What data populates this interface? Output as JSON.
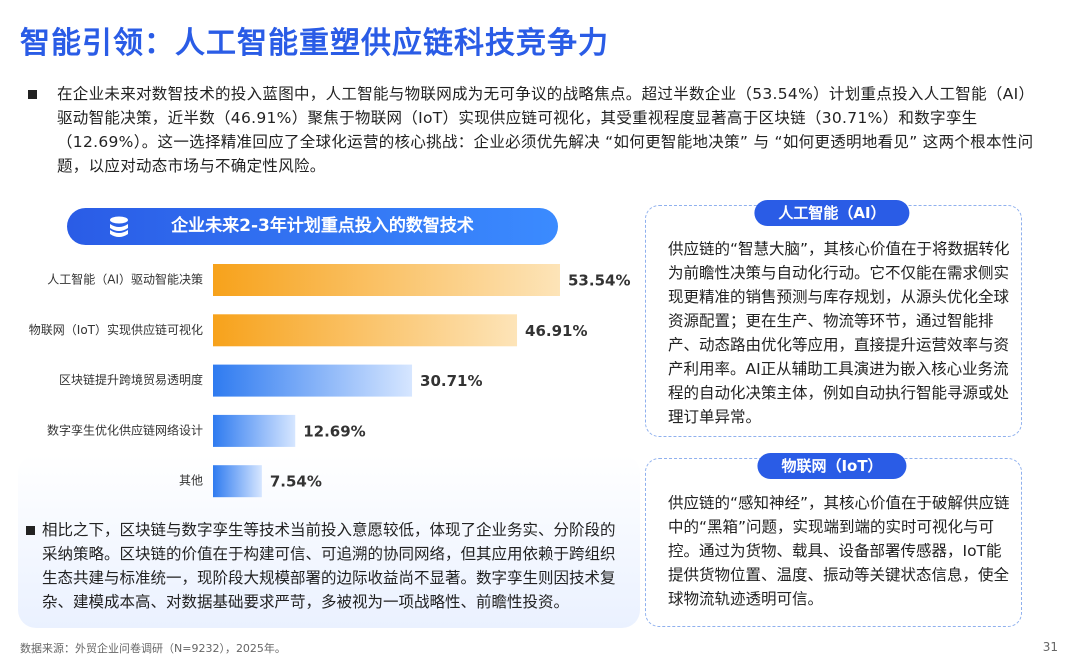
{
  "title": "智能引领：人工智能重塑供应链科技竞争力",
  "intro": "在企业未来对数智技术的投入蓝图中，人工智能与物联网成为无可争议的战略焦点。超过半数企业（53.54%）计划重点投入人工智能（AI）驱动智能决策，近半数（46.91%）聚焦于物联网（IoT）实现供应链可视化，其受重视程度显著高于区块链（30.71%）和数字孪生（12.69%）。这一选择精准回应了全球化运营的核心挑战：企业必须优先解决 “如何更智能地决策” 与 “如何更透明地看见” 这两个根本性问题，以应对动态市场与不确定性风险。",
  "chart_data": {
    "type": "hbar",
    "title": "企业未来2-3年计划重点投入的数智技术",
    "categories": [
      "人工智能（AI）驱动智能决策",
      "物联网（IoT）实现供应链可视化",
      "区块链提升跨境贸易透明度",
      "数字孪生优化供应链网络设计",
      "其他"
    ],
    "values": [
      53.54,
      46.91,
      30.71,
      12.69,
      7.54
    ],
    "value_labels": [
      "53.54%",
      "46.91%",
      "30.71%",
      "12.69%",
      "7.54%"
    ],
    "colors": [
      "#f7a21b",
      "#f7a21b",
      "#2f7bf0",
      "#2f7bf0",
      "#2f7bf0"
    ]
  },
  "note": "相比之下，区块链与数字孪生等技术当前投入意愿较低，体现了企业务实、分阶段的采纳策略。区块链的价值在于构建可信、可追溯的协同网络，但其应用依赖于跨组织生态共建与标准统一，现阶段大规模部署的边际收益尚不显著。数字孪生则因技术复杂、建模成本高、对数据基础要求严苛，多被视为一项战略性、前瞻性投资。",
  "cards": [
    {
      "title": "人工智能（AI）",
      "text": "供应链的“智慧大脑”，其核心价值在于将数据转化为前瞻性决策与自动化行动。它不仅能在需求侧实现更精准的销售预测与库存规划，从源头优化全球资源配置；更在生产、物流等环节，通过智能排产、动态路由优化等应用，直接提升运营效率与资产利用率。AI正从辅助工具演进为嵌入核心业务流程的自动化决策主体，例如自动执行智能寻源或处理订单异常。"
    },
    {
      "title": "物联网（IoT）",
      "text": "供应链的“感知神经”，其核心价值在于破解供应链中的“黑箱”问题，实现端到端的实时可视化与可控。通过为货物、载具、设备部署传感器，IoT能提供货物位置、温度、振动等关键状态信息，使全球物流轨迹透明可信。"
    }
  ],
  "footer": "数据来源：外贸企业问卷调研（N=9232），2025年。",
  "page_number": "31"
}
